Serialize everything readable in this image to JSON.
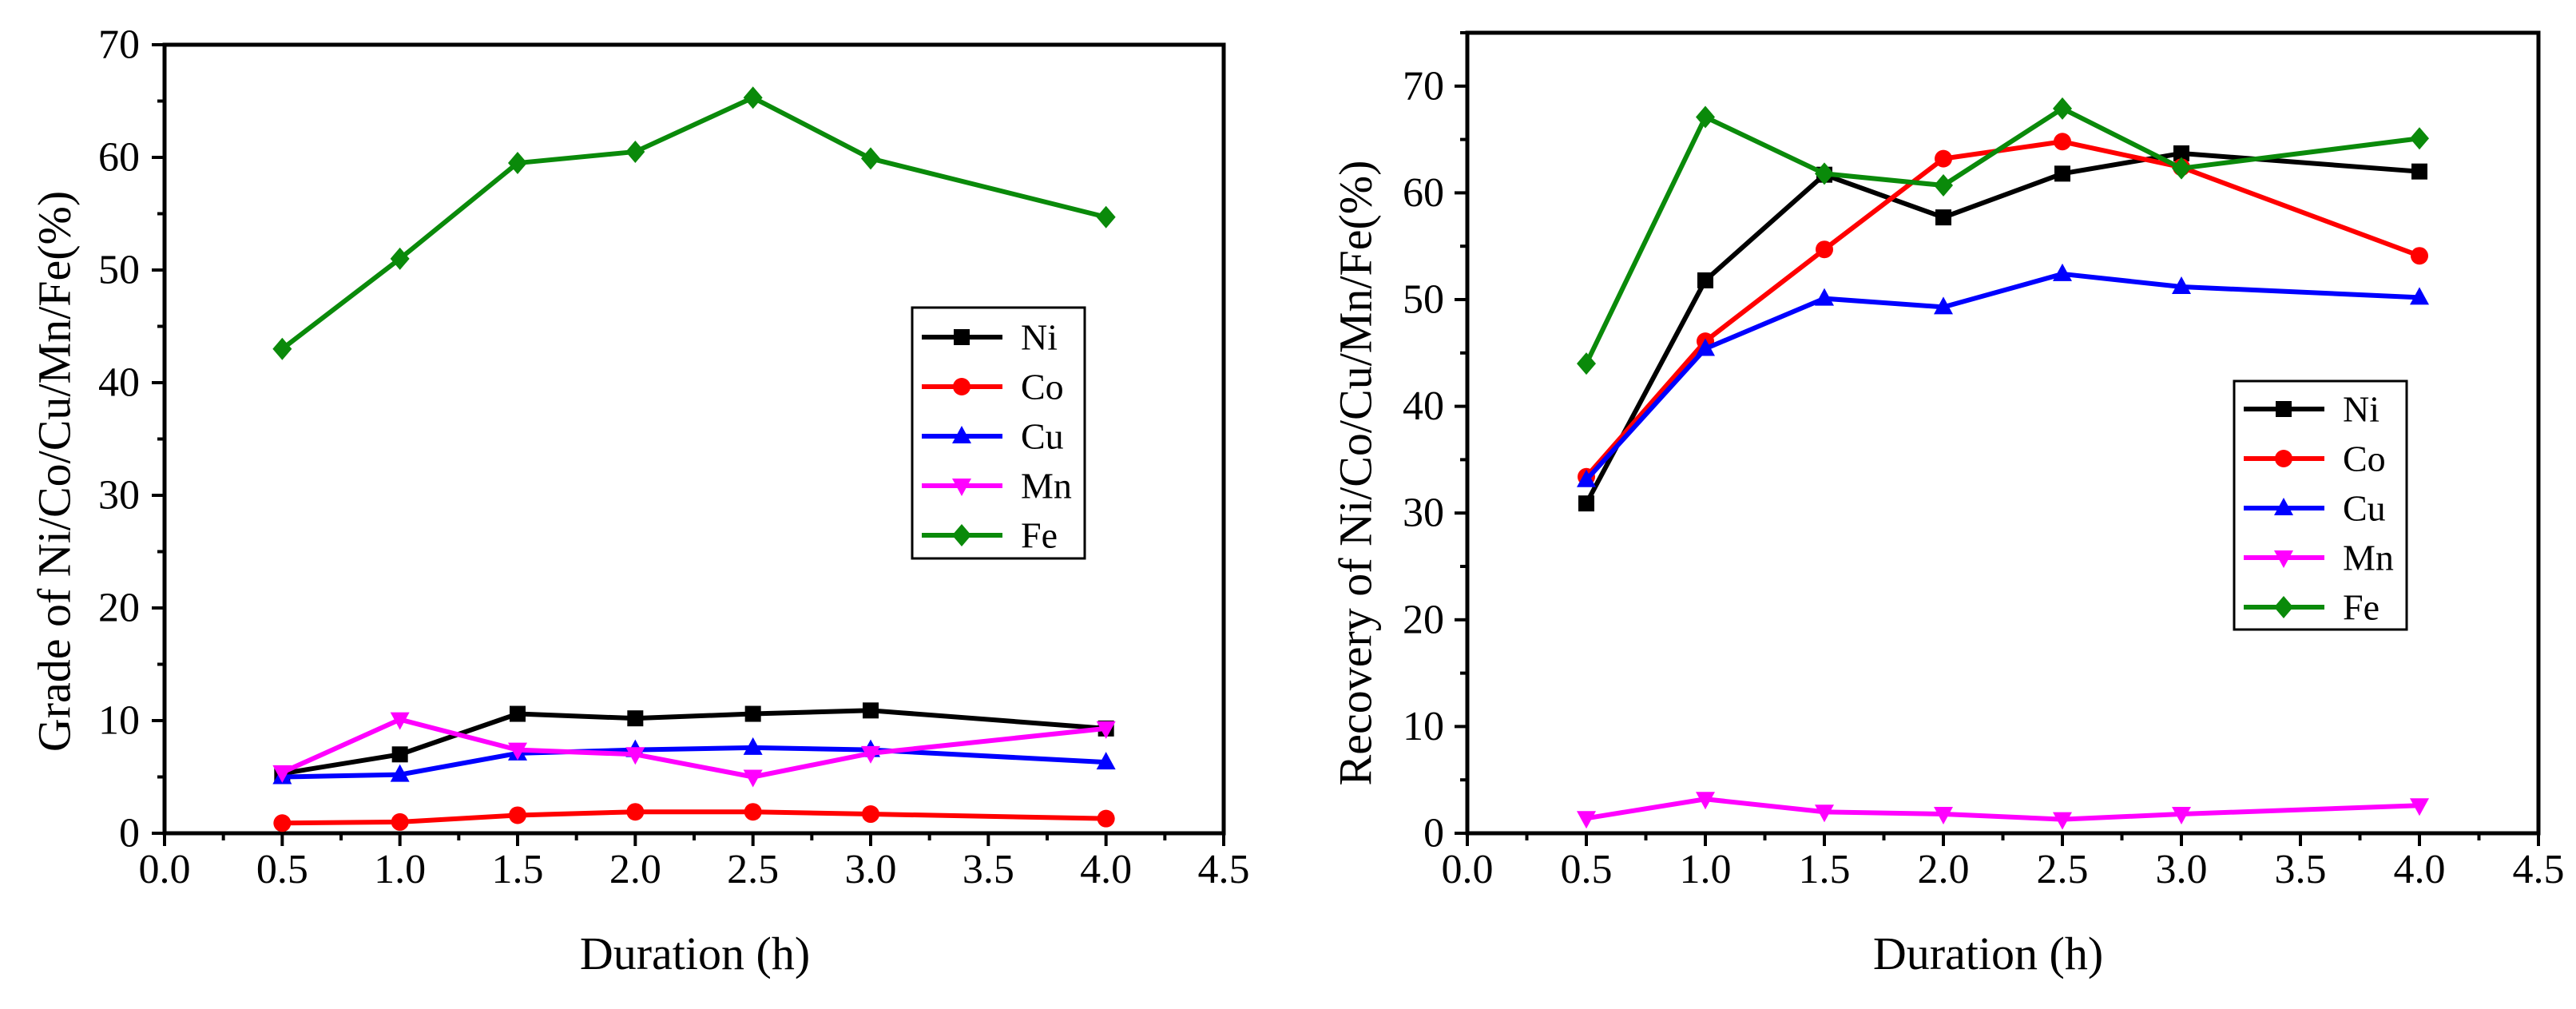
{
  "chart_data": [
    {
      "type": "line",
      "title": "",
      "xlabel": "Duration (h)",
      "ylabel": "Grade of Ni/Co/Cu/Mn/Fe(%)",
      "xlim": [
        0,
        4.5
      ],
      "ylim": [
        0,
        70
      ],
      "x_ticks": [
        "0.0",
        "0.5",
        "1.0",
        "1.5",
        "2.0",
        "2.5",
        "3.0",
        "3.5",
        "4.0",
        "4.5"
      ],
      "y_ticks": [
        "0",
        "10",
        "20",
        "30",
        "40",
        "50",
        "60",
        "70"
      ],
      "grid": false,
      "legend_loc": "right",
      "x": [
        0.5,
        1.0,
        1.5,
        2.0,
        2.5,
        3.0,
        4.0
      ],
      "series": [
        {
          "name": "Ni",
          "color": "#000000",
          "marker": "square",
          "values": [
            5.3,
            7.0,
            10.6,
            10.2,
            10.6,
            10.9,
            9.3
          ]
        },
        {
          "name": "Co",
          "color": "#ff0000",
          "marker": "circle",
          "values": [
            0.9,
            1.0,
            1.6,
            1.9,
            1.9,
            1.7,
            1.3
          ]
        },
        {
          "name": "Cu",
          "color": "#0000ff",
          "marker": "triangle-up",
          "values": [
            5.0,
            5.2,
            7.1,
            7.4,
            7.6,
            7.4,
            6.3
          ]
        },
        {
          "name": "Mn",
          "color": "#ff00ff",
          "marker": "triangle-down",
          "values": [
            5.4,
            10.1,
            7.4,
            7.0,
            5.0,
            7.1,
            9.3
          ]
        },
        {
          "name": "Fe",
          "color": "#0a8a0a",
          "marker": "diamond",
          "values": [
            43.0,
            51.0,
            59.5,
            60.5,
            65.3,
            59.9,
            54.7
          ]
        }
      ]
    },
    {
      "type": "line",
      "title": "",
      "xlabel": "Duration (h)",
      "ylabel": "Recovery of Ni/Co/Cu/Mn/Fe(%)",
      "xlim": [
        0,
        4.5
      ],
      "ylim": [
        0,
        75
      ],
      "x_ticks": [
        "0.0",
        "0.5",
        "1.0",
        "1.5",
        "2.0",
        "2.5",
        "3.0",
        "3.5",
        "4.0",
        "4.5"
      ],
      "y_ticks": [
        "0",
        "10",
        "20",
        "30",
        "40",
        "50",
        "60",
        "70"
      ],
      "grid": false,
      "legend_loc": "right",
      "x": [
        0.5,
        1.0,
        1.5,
        2.0,
        2.5,
        3.0,
        4.0
      ],
      "series": [
        {
          "name": "Ni",
          "color": "#000000",
          "marker": "square",
          "values": [
            30.9,
            51.8,
            61.7,
            57.7,
            61.8,
            63.7,
            62.0
          ]
        },
        {
          "name": "Co",
          "color": "#ff0000",
          "marker": "circle",
          "values": [
            33.4,
            46.1,
            54.7,
            63.2,
            64.8,
            62.4,
            54.1
          ]
        },
        {
          "name": "Cu",
          "color": "#0000ff",
          "marker": "triangle-up",
          "values": [
            33.1,
            45.4,
            50.1,
            49.3,
            52.4,
            51.2,
            50.2
          ]
        },
        {
          "name": "Mn",
          "color": "#ff00ff",
          "marker": "triangle-down",
          "values": [
            1.4,
            3.2,
            2.0,
            1.8,
            1.3,
            1.8,
            2.6
          ]
        },
        {
          "name": "Fe",
          "color": "#0a8a0a",
          "marker": "diamond",
          "values": [
            44.0,
            67.1,
            61.8,
            60.7,
            67.9,
            62.3,
            65.1
          ]
        }
      ]
    }
  ]
}
